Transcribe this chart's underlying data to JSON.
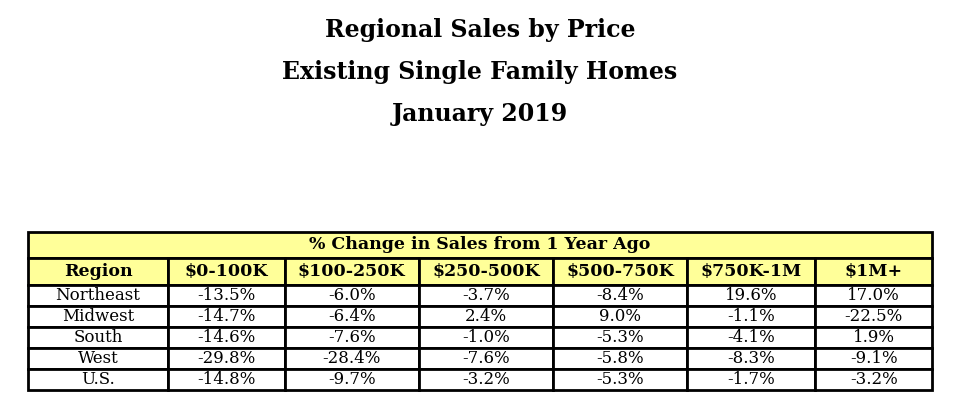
{
  "title_line1": "Regional Sales by Price",
  "title_line2": "Existing Single Family Homes",
  "title_line3": "January 2019",
  "header_main": "% Change in Sales from 1 Year Ago",
  "col_headers": [
    "Region",
    "$0-100K",
    "$100-250K",
    "$250-500K",
    "$500-750K",
    "$750K-1M",
    "$1M+"
  ],
  "rows": [
    [
      "Northeast",
      "-13.5%",
      "-6.0%",
      "-3.7%",
      "-8.4%",
      "19.6%",
      "17.0%"
    ],
    [
      "Midwest",
      "-14.7%",
      "-6.4%",
      "2.4%",
      "9.0%",
      "-1.1%",
      "-22.5%"
    ],
    [
      "South",
      "-14.6%",
      "-7.6%",
      "-1.0%",
      "-5.3%",
      "-4.1%",
      "1.9%"
    ],
    [
      "West",
      "-29.8%",
      "-28.4%",
      "-7.6%",
      "-5.8%",
      "-8.3%",
      "-9.1%"
    ],
    [
      "U.S.",
      "-14.8%",
      "-9.7%",
      "-3.2%",
      "-5.3%",
      "-1.7%",
      "-3.2%"
    ]
  ],
  "header_bg": "#FFFF99",
  "col_header_bg": "#FFFF99",
  "row_bg": "#FFFFFF",
  "border_color": "#000000",
  "text_color": "#000000",
  "title_color": "#000000",
  "header_fontsize": 12.5,
  "col_header_fontsize": 12.5,
  "data_fontsize": 12,
  "title_fontsize": 17,
  "title_linespacing": 2.0
}
